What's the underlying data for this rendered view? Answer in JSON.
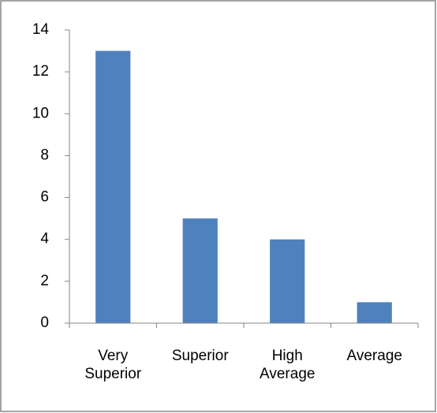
{
  "chart_data": {
    "type": "bar",
    "categories": [
      "Very Superior",
      "Superior",
      "High Average",
      "Average"
    ],
    "values": [
      13,
      5,
      4,
      1
    ],
    "color": "#4f81bd",
    "ylim": [
      0,
      14
    ],
    "yticks": [
      0,
      2,
      4,
      6,
      8,
      10,
      12,
      14
    ],
    "grid": false
  }
}
